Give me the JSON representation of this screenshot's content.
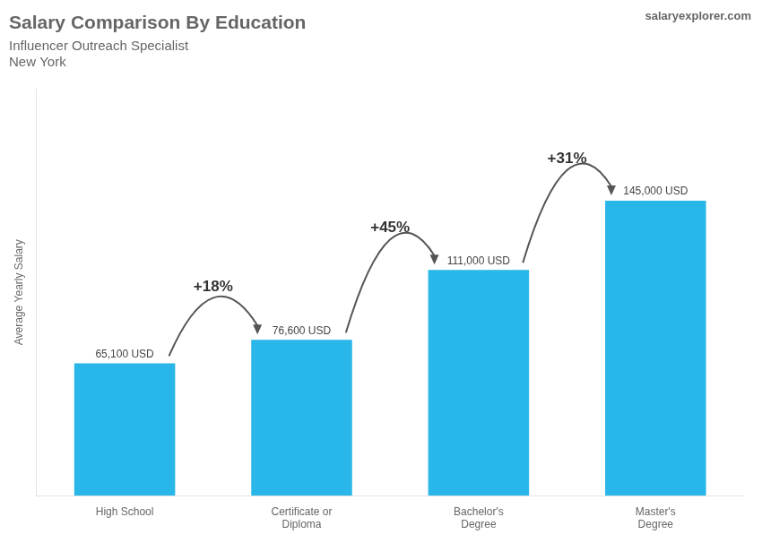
{
  "chart_data": {
    "type": "bar",
    "title": "Salary Comparison By Education",
    "subtitle": [
      "Influencer Outreach Specialist",
      "New York"
    ],
    "source": "salaryexplorer.com",
    "y_label": "Average Yearly Salary",
    "categories": [
      "High School",
      "Certificate or\nDiploma",
      "Bachelor's\nDegree",
      "Master's\nDegree"
    ],
    "values": [
      65100,
      76600,
      111000,
      145000
    ],
    "value_labels": [
      "65,100 USD",
      "76,600 USD",
      "111,000 USD",
      "145,000 USD"
    ],
    "data_labels": true,
    "annotations": [
      "+18%",
      "+45%",
      "+31%"
    ],
    "color": "#29b6e8",
    "ylim": [
      0,
      200000
    ],
    "grid": false,
    "legend": false,
    "tick_labels": "x"
  }
}
